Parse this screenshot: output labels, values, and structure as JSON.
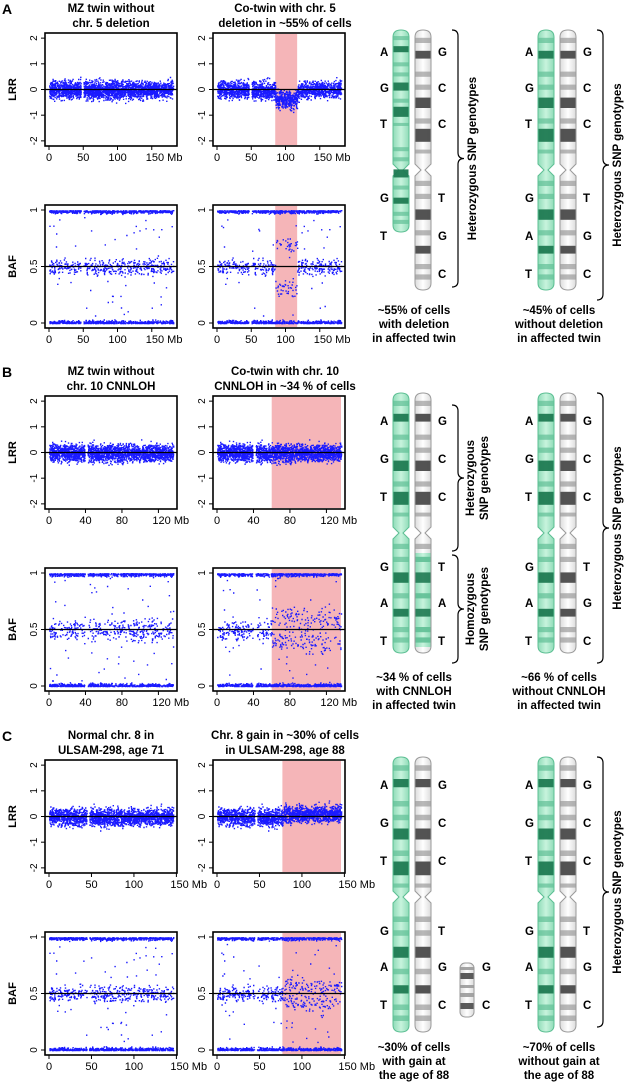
{
  "figure": {
    "panels": [
      {
        "letter": "A",
        "plot_titles": [
          [
            "MZ twin without",
            "chr. 5 deletion"
          ],
          [
            "Co-twin with chr. 5",
            "deletion in ~55% of cells"
          ]
        ],
        "lrr_ylabel": "LRR",
        "baf_ylabel": "BAF",
        "lrr_ticks": [
          "2",
          "1",
          "0",
          "-1",
          "-2"
        ],
        "baf_ticks": [
          "1",
          "0.5",
          "0"
        ],
        "x_ticks": [
          "0",
          "50",
          "100",
          "150 Mb"
        ],
        "x_max_mb": 181,
        "x_tick_values": [
          0,
          50,
          100,
          150
        ],
        "centromere_gap_mb": [
          46,
          50
        ],
        "shaded_region_mb": [
          85,
          117
        ],
        "event": "deletion",
        "diagram": {
          "left": {
            "alleles_left": [
              "A",
              "G",
              "T",
              "G",
              "T"
            ],
            "alleles_right": [
              "G",
              "C",
              "C",
              "T",
              "G",
              "C"
            ],
            "brace_label": "Heterozygous SNP genotypes",
            "caption": [
              "~55% of cells",
              "with deletion",
              "in affected twin"
            ]
          },
          "right": {
            "alleles_left": [
              "A",
              "G",
              "T",
              "G",
              "A",
              "T"
            ],
            "alleles_right": [
              "G",
              "C",
              "C",
              "T",
              "G",
              "C"
            ],
            "brace_label": "Heterozygous SNP genotypes",
            "caption": [
              "~45% of cells",
              "without deletion",
              "in affected twin"
            ]
          }
        }
      },
      {
        "letter": "B",
        "plot_titles": [
          [
            "MZ twin without",
            "chr. 10 CNNLOH"
          ],
          [
            "Co-twin with chr. 10",
            "CNNLOH in ~34 % of cells"
          ]
        ],
        "lrr_ylabel": "LRR",
        "baf_ylabel": "BAF",
        "lrr_ticks": [
          "2",
          "1",
          "0",
          "-1",
          "-2"
        ],
        "baf_ticks": [
          "1",
          "0.5",
          "0"
        ],
        "x_ticks": [
          "0",
          "40",
          "80",
          "120 Mb"
        ],
        "x_max_mb": 136,
        "x_tick_values": [
          0,
          40,
          80,
          120
        ],
        "centromere_gap_mb": [
          39,
          42
        ],
        "shaded_region_mb": [
          60,
          136
        ],
        "event": "cnnloh",
        "diagram": {
          "left": {
            "alleles_left": [
              "A",
              "G",
              "T",
              "G",
              "A",
              "T"
            ],
            "alleles_right": [
              "G",
              "C",
              "C",
              "T",
              "A",
              "T"
            ],
            "brace_label_1": [
              "Heterozygous",
              "SNP genotypes"
            ],
            "brace_label_2": [
              "Homozygous",
              "SNP genotypes"
            ],
            "caption": [
              "~34 % of cells",
              "with CNNLOH",
              "in affected twin"
            ]
          },
          "right": {
            "alleles_left": [
              "A",
              "G",
              "T",
              "G",
              "A",
              "T"
            ],
            "alleles_right": [
              "G",
              "C",
              "C",
              "T",
              "G",
              "C"
            ],
            "brace_label": "Heterozygous SNP genotypes",
            "caption": [
              "~66 % of cells",
              "without CNNLOH",
              "in affected twin"
            ]
          }
        }
      },
      {
        "letter": "C",
        "plot_titles": [
          [
            "Normal chr. 8 in",
            "ULSAM-298, age 71"
          ],
          [
            "Chr. 8 gain in ~30% of cells",
            "in ULSAM-298, age 88"
          ]
        ],
        "lrr_ylabel": "LRR",
        "baf_ylabel": "BAF",
        "lrr_ticks": [
          "2",
          "1",
          "0",
          "-1",
          "-2"
        ],
        "baf_ticks": [
          "1",
          "0.5",
          "0"
        ],
        "x_ticks": [
          "0",
          "50",
          "100",
          "150 Mb"
        ],
        "x_max_mb": 146,
        "x_tick_values": [
          0,
          50,
          100,
          150
        ],
        "centromere_gap_mb": [
          44,
          47
        ],
        "shaded_region_mb": [
          77,
          146
        ],
        "event": "gain",
        "diagram": {
          "left": {
            "alleles_left": [
              "A",
              "G",
              "T",
              "G",
              "A",
              "T"
            ],
            "alleles_right": [
              "G",
              "C",
              "C",
              "T",
              "G",
              "C"
            ],
            "extra_alleles": [
              "G",
              "C"
            ],
            "caption": [
              "~30% of cells",
              "with gain at",
              "the age of 88"
            ]
          },
          "right": {
            "alleles_left": [
              "A",
              "G",
              "T",
              "G",
              "A",
              "T"
            ],
            "alleles_right": [
              "G",
              "C",
              "C",
              "T",
              "G",
              "C"
            ],
            "brace_label": "Heterozygous SNP genotypes",
            "caption": [
              "~70% of cells",
              "without gain at",
              "the age of 88"
            ]
          }
        }
      }
    ],
    "colors": {
      "points": "#1a1aff",
      "shade": "#f5b5b8",
      "chrom_green": "#9fe6c4",
      "chrom_green_dark": "#1f7a52",
      "chrom_grey": "#4a4a4a"
    }
  }
}
